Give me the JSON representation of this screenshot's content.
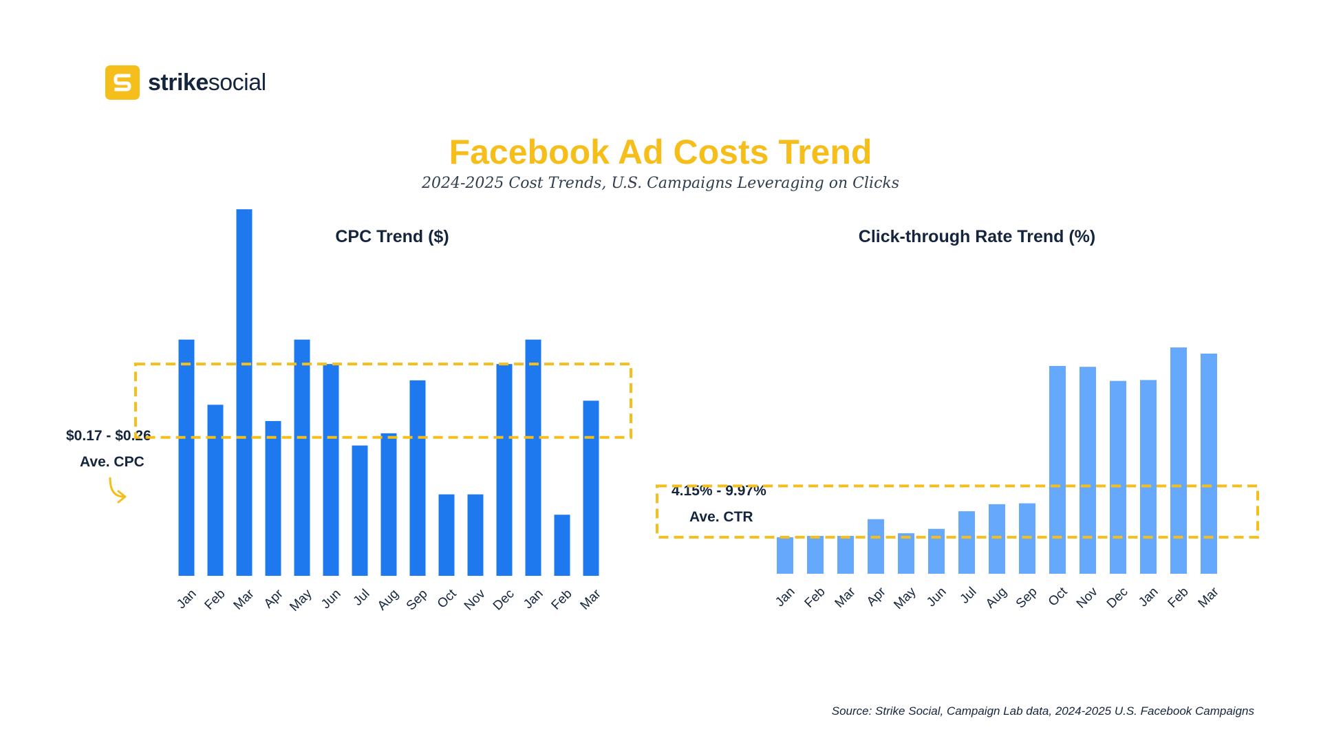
{
  "brand": {
    "name_bold": "strike",
    "name_regular": "social",
    "logo_icon": "strike-social-logo-icon",
    "accent_color": "#f5be1a"
  },
  "title": "Facebook Ad Costs Trend",
  "subtitle": "2024-2025 Cost Trends, U.S. Campaigns Leveraging on Clicks",
  "source": "Source: Strike Social, Campaign Lab data, 2024-2025 U.S. Facebook Campaigns",
  "annotations": {
    "cpc_range": "$0.17 - $0.26",
    "cpc_avg_label": "Ave. CPC",
    "ctr_range": "4.15% - 9.97%",
    "ctr_avg_label": "Ave. CTR"
  },
  "chart_data": [
    {
      "type": "bar",
      "title": "CPC Trend ($)",
      "categories": [
        "Jan",
        "Feb",
        "Mar",
        "Apr",
        "May",
        "Jun",
        "Jul",
        "Aug",
        "Sep",
        "Oct",
        "Nov",
        "Dec",
        "Jan",
        "Feb",
        "Mar"
      ],
      "values": [
        0.29,
        0.21,
        0.45,
        0.19,
        0.29,
        0.26,
        0.16,
        0.175,
        0.24,
        0.1,
        0.1,
        0.26,
        0.29,
        0.075,
        0.215
      ],
      "ylim": [
        0,
        0.5
      ],
      "range_band": [
        0.17,
        0.26
      ],
      "bar_color": "#1e78ee",
      "grid": false,
      "axis_tick_labels": false
    },
    {
      "type": "bar",
      "title": "Click-through Rate Trend (%)",
      "categories": [
        "Jan",
        "Feb",
        "Mar",
        "Apr",
        "May",
        "Jun",
        "Jul",
        "Aug",
        "Sep",
        "Oct",
        "Nov",
        "Dec",
        "Jan",
        "Feb",
        "Mar"
      ],
      "values": [
        4.15,
        4.3,
        4.3,
        6.2,
        4.6,
        5.1,
        7.1,
        7.9,
        8.0,
        23.6,
        23.5,
        21.9,
        22.0,
        25.7,
        25.0
      ],
      "ylim": [
        0,
        30
      ],
      "range_band": [
        4.15,
        9.97
      ],
      "bar_color": "#66a8fb",
      "grid": false,
      "axis_tick_labels": false
    }
  ]
}
